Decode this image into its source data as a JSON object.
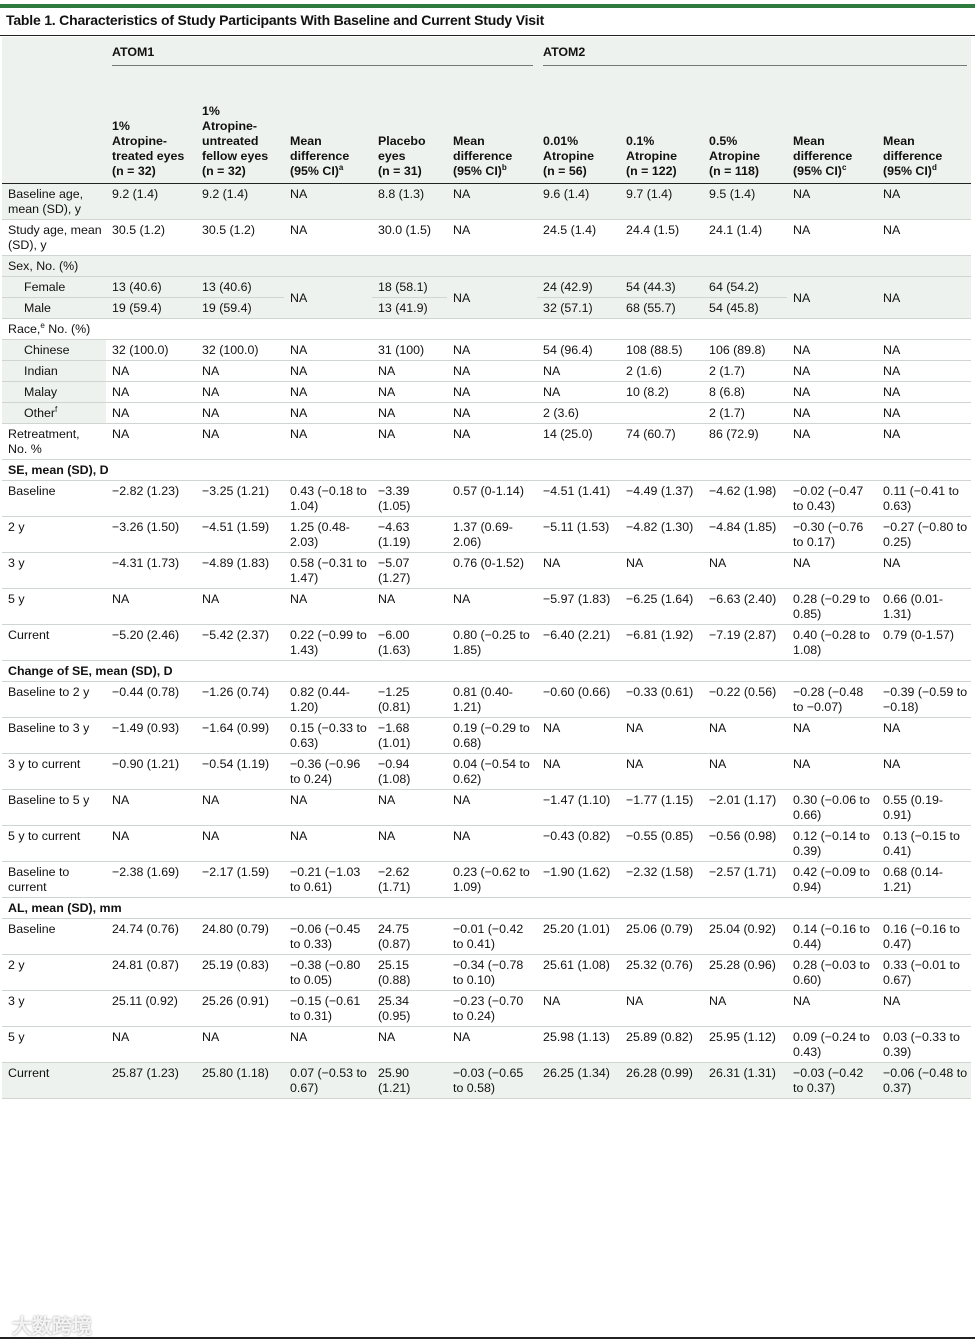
{
  "title": "Table 1. Characteristics of Study Participants With Baseline and Current Study Visit",
  "groups": {
    "atom1": "ATOM1",
    "atom2": "ATOM2"
  },
  "columns": [
    "",
    "1% Atropine-treated eyes (n = 32)",
    "1% Atropine-untreated fellow eyes (n = 32)",
    "Mean difference (95% CI)a",
    "Placebo eyes (n = 31)",
    "Mean difference (95% CI)b",
    "0.01% Atropine (n = 56)",
    "0.1% Atropine (n = 122)",
    "0.5% Atropine (n = 118)",
    "Mean difference (95% CI)c",
    "Mean difference (95% CI)d"
  ],
  "col_lines": [
    [],
    [
      "1%",
      "Atropine-",
      "treated eyes",
      "(n = 32)"
    ],
    [
      "1%",
      "Atropine-",
      "untreated",
      "fellow eyes",
      "(n = 32)"
    ],
    [
      "Mean",
      "difference",
      "(95% CI)"
    ],
    [
      "Placebo",
      "eyes",
      "(n = 31)"
    ],
    [
      "Mean",
      "difference",
      "(95% CI)"
    ],
    [
      "0.01%",
      "Atropine",
      "(n = 56)"
    ],
    [
      "0.1%",
      "Atropine",
      "(n = 122)"
    ],
    [
      "0.5%",
      "Atropine",
      "(n = 118)"
    ],
    [
      "Mean",
      "difference",
      "(95% CI)"
    ],
    [
      "Mean",
      "difference",
      "(95% CI)"
    ]
  ],
  "col_sups": [
    "",
    "",
    "",
    "a",
    "",
    "b",
    "",
    "",
    "",
    "c",
    "d"
  ],
  "rows": {
    "base_age": [
      "Baseline age, mean (SD), y",
      "9.2 (1.4)",
      "9.2 (1.4)",
      "NA",
      "8.8 (1.3)",
      "NA",
      "9.6 (1.4)",
      "9.7 (1.4)",
      "9.5 (1.4)",
      "NA",
      "NA"
    ],
    "study_age": [
      "Study age, mean (SD), y",
      "30.5 (1.2)",
      "30.5 (1.2)",
      "NA",
      "30.0 (1.5)",
      "NA",
      "24.5 (1.4)",
      "24.4 (1.5)",
      "24.1 (1.4)",
      "NA",
      "NA"
    ],
    "sex": "Sex, No. (%)",
    "female": [
      "Female",
      "13 (40.6)",
      "13 (40.6)",
      "NA",
      "18 (58.1)",
      "NA",
      "24 (42.9)",
      "54 (44.3)",
      "64 (54.2)",
      "NA",
      "NA"
    ],
    "male": [
      "Male",
      "19 (59.4)",
      "19 (59.4)",
      "",
      "13 (41.9)",
      "",
      "32 (57.1)",
      "68 (55.7)",
      "54 (45.8)",
      "",
      ""
    ],
    "race_label": "Race,",
    "race_sup": "e",
    "race_rest": " No. (%)",
    "chinese": [
      "Chinese",
      "32 (100.0)",
      "32 (100.0)",
      "NA",
      "31 (100)",
      "NA",
      "54 (96.4)",
      "108 (88.5)",
      "106 (89.8)",
      "NA",
      "NA"
    ],
    "indian": [
      "Indian",
      "NA",
      "NA",
      "NA",
      "NA",
      "NA",
      "NA",
      "2 (1.6)",
      "2 (1.7)",
      "NA",
      "NA"
    ],
    "malay": [
      "Malay",
      "NA",
      "NA",
      "NA",
      "NA",
      "NA",
      "NA",
      "10 (8.2)",
      "8 (6.8)",
      "NA",
      "NA"
    ],
    "other": [
      "Other",
      "NA",
      "NA",
      "NA",
      "NA",
      "NA",
      "2 (3.6)",
      "",
      "2 (1.7)",
      "NA",
      "NA"
    ],
    "other_sup": "f",
    "retreat": [
      "Retreatment, No. %",
      "NA",
      "NA",
      "NA",
      "NA",
      "NA",
      "14 (25.0)",
      "74 (60.7)",
      "86 (72.9)",
      "NA",
      "NA"
    ],
    "se_head": "SE, mean (SD), D",
    "se_base": [
      "Baseline",
      "−2.82 (1.23)",
      "−3.25 (1.21)",
      "0.43 (−0.18 to 1.04)",
      "−3.39 (1.05)",
      "0.57 (0-1.14)",
      "−4.51 (1.41)",
      "−4.49 (1.37)",
      "−4.62 (1.98)",
      "−0.02 (−0.47 to 0.43)",
      "0.11 (−0.41 to 0.63)"
    ],
    "se_2y": [
      "2 y",
      "−3.26 (1.50)",
      "−4.51 (1.59)",
      "1.25 (0.48-2.03)",
      "−4.63 (1.19)",
      "1.37 (0.69-2.06)",
      "−5.11 (1.53)",
      "−4.82 (1.30)",
      "−4.84 (1.85)",
      "−0.30 (−0.76 to 0.17)",
      "−0.27 (−0.80 to 0.25)"
    ],
    "se_3y": [
      "3 y",
      "−4.31 (1.73)",
      "−4.89 (1.83)",
      "0.58 (−0.31 to 1.47)",
      "−5.07 (1.27)",
      "0.76 (0-1.52)",
      "NA",
      "NA",
      "NA",
      "NA",
      "NA"
    ],
    "se_5y": [
      "5 y",
      "NA",
      "NA",
      "NA",
      "NA",
      "NA",
      "−5.97 (1.83)",
      "−6.25 (1.64)",
      "−6.63 (2.40)",
      "0.28 (−0.29 to 0.85)",
      "0.66 (0.01-1.31)"
    ],
    "se_cur": [
      "Current",
      "−5.20 (2.46)",
      "−5.42 (2.37)",
      "0.22 (−0.99 to 1.43)",
      "−6.00 (1.63)",
      "0.80 (−0.25 to 1.85)",
      "−6.40 (2.21)",
      "−6.81 (1.92)",
      "−7.19 (2.87)",
      "0.40 (−0.28 to 1.08)",
      "0.79 (0-1.57)"
    ],
    "chg_head": "Change of SE, mean (SD), D",
    "chg_b2": [
      "Baseline to 2 y",
      "−0.44 (0.78)",
      "−1.26 (0.74)",
      "0.82 (0.44-1.20)",
      "−1.25 (0.81)",
      "0.81 (0.40-1.21)",
      "−0.60 (0.66)",
      "−0.33 (0.61)",
      "−0.22 (0.56)",
      "−0.28 (−0.48 to −0.07)",
      "−0.39 (−0.59 to −0.18)"
    ],
    "chg_b3": [
      "Baseline to 3 y",
      "−1.49 (0.93)",
      "−1.64 (0.99)",
      "0.15 (−0.33 to 0.63)",
      "−1.68 (1.01)",
      "0.19 (−0.29 to 0.68)",
      "NA",
      "NA",
      "NA",
      "NA",
      "NA"
    ],
    "chg_3c": [
      "3 y to current",
      "−0.90 (1.21)",
      "−0.54 (1.19)",
      "−0.36 (−0.96 to 0.24)",
      "−0.94 (1.08)",
      "0.04 (−0.54 to 0.62)",
      "NA",
      "NA",
      "NA",
      "NA",
      "NA"
    ],
    "chg_b5": [
      "Baseline to 5 y",
      "NA",
      "NA",
      "NA",
      "NA",
      "NA",
      "−1.47 (1.10)",
      "−1.77 (1.15)",
      "−2.01 (1.17)",
      "0.30 (−0.06 to 0.66)",
      "0.55 (0.19-0.91)"
    ],
    "chg_5c": [
      "5 y to current",
      "NA",
      "NA",
      "NA",
      "NA",
      "NA",
      "−0.43 (0.82)",
      "−0.55 (0.85)",
      "−0.56 (0.98)",
      "0.12 (−0.14 to 0.39)",
      "0.13 (−0.15 to 0.41)"
    ],
    "chg_bc": [
      "Baseline to current",
      "−2.38 (1.69)",
      "−2.17 (1.59)",
      "−0.21 (−1.03 to 0.61)",
      "−2.62 (1.71)",
      "0.23 (−0.62 to 1.09)",
      "−1.90 (1.62)",
      "−2.32 (1.58)",
      "−2.57 (1.71)",
      "0.42 (−0.09 to 0.94)",
      "0.68 (0.14-1.21)"
    ],
    "al_head": "AL, mean (SD), mm",
    "al_base": [
      "Baseline",
      "24.74 (0.76)",
      "24.80 (0.79)",
      "−0.06 (−0.45 to 0.33)",
      "24.75 (0.87)",
      "−0.01 (−0.42 to 0.41)",
      "25.20 (1.01)",
      "25.06 (0.79)",
      "25.04 (0.92)",
      "0.14 (−0.16 to 0.44)",
      "0.16 (−0.16 to 0.47)"
    ],
    "al_2y": [
      "2 y",
      "24.81 (0.87)",
      "25.19 (0.83)",
      "−0.38 (−0.80 to 0.05)",
      "25.15 (0.88)",
      "−0.34 (−0.78 to 0.10)",
      "25.61 (1.08)",
      "25.32 (0.76)",
      "25.28 (0.96)",
      "0.28 (−0.03 to 0.60)",
      "0.33 (−0.01 to 0.67)"
    ],
    "al_3y": [
      "3 y",
      "25.11 (0.92)",
      "25.26 (0.91)",
      "−0.15 (−0.61 to 0.31)",
      "25.34 (0.95)",
      "−0.23 (−0.70 to 0.24)",
      "NA",
      "NA",
      "NA",
      "NA",
      "NA"
    ],
    "al_5y": [
      "5 y",
      "NA",
      "NA",
      "NA",
      "NA",
      "NA",
      "25.98 (1.13)",
      "25.89 (0.82)",
      "25.95 (1.12)",
      "0.09 (−0.24 to 0.43)",
      "0.03 (−0.33 to 0.39)"
    ],
    "al_cur": [
      "Current",
      "25.87 (1.23)",
      "25.80 (1.18)",
      "0.07 (−0.53 to 0.67)",
      "25.90 (1.21)",
      "−0.03 (−0.65 to 0.58)",
      "26.25 (1.34)",
      "26.28 (0.99)",
      "26.31 (1.31)",
      "−0.03 (−0.42 to 0.37)",
      "−0.06 (−0.48 to 0.37)"
    ]
  },
  "watermark": "大数跨境",
  "colors": {
    "accent": "#2f7a3d",
    "shade": "#eef2ee"
  }
}
